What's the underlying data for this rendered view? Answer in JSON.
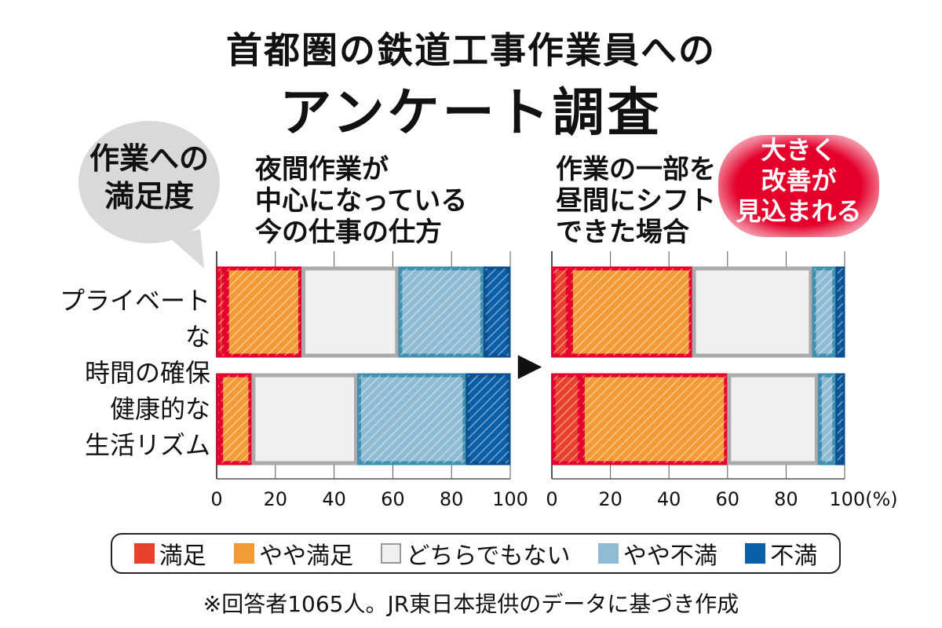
{
  "title_line1": "首都圏の鉄道工事作業員への",
  "title_line2": "アンケート調査",
  "bubble": {
    "line1": "作業への",
    "line2": "満足度"
  },
  "left_heading": [
    "夜間作業が",
    "中心になっている",
    "今の仕事の仕方"
  ],
  "right_heading": [
    "作業の一部を",
    "昼間にシフト",
    "できた場合"
  ],
  "callout": [
    "大きく",
    "改善が",
    "見込まれる"
  ],
  "arrow_glyph": "▶",
  "row_labels": [
    [
      "プライベートな",
      "時間の確保"
    ],
    [
      "健康的な",
      "生活リズム"
    ]
  ],
  "x_ticks": [
    "0",
    "20",
    "40",
    "60",
    "80",
    "100"
  ],
  "x_unit": "(%)",
  "legend": [
    {
      "label": "満足",
      "color": "#e8402a"
    },
    {
      "label": "やや満足",
      "color": "#f29a36"
    },
    {
      "label": "どちらでもない",
      "color": "#f0f0ef"
    },
    {
      "label": "やや不満",
      "color": "#8fbcd4"
    },
    {
      "label": "不満",
      "color": "#0b5fa8"
    }
  ],
  "footnote": "※回答者1065人。JR東日本提供のデータに基づき作成",
  "chart_data": [
    {
      "type": "bar",
      "orientation": "horizontal-stacked",
      "categories": [
        "プライベートな時間の確保",
        "健康的な生活リズム"
      ],
      "series": [
        {
          "name": "満足",
          "values": [
            3,
            1
          ]
        },
        {
          "name": "やや満足",
          "values": [
            26,
            11
          ]
        },
        {
          "name": "どちらでもない",
          "values": [
            33,
            36
          ]
        },
        {
          "name": "やや不満",
          "values": [
            29,
            37
          ]
        },
        {
          "name": "不満",
          "values": [
            9,
            15
          ]
        }
      ],
      "xlim": [
        0,
        100
      ],
      "grid": true
    },
    {
      "type": "bar",
      "orientation": "horizontal-stacked",
      "categories": [
        "プライベートな時間の確保",
        "健康的な生活リズム"
      ],
      "series": [
        {
          "name": "満足",
          "values": [
            6,
            10
          ]
        },
        {
          "name": "やや満足",
          "values": [
            42,
            50
          ]
        },
        {
          "name": "どちらでもない",
          "values": [
            41,
            31
          ]
        },
        {
          "name": "やや不満",
          "values": [
            8,
            6
          ]
        },
        {
          "name": "不満",
          "values": [
            3,
            3
          ]
        }
      ],
      "xlim": [
        0,
        100
      ],
      "grid": true
    }
  ]
}
